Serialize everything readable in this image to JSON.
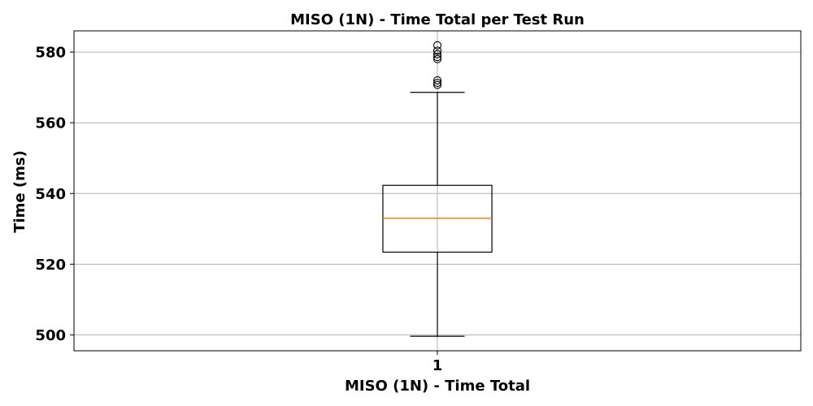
{
  "chart_data": {
    "type": "box",
    "title": "MISO (1N) - Time Total per Test Run",
    "xlabel": "MISO (1N) - Time Total",
    "ylabel": "Time (ms)",
    "categories": [
      "1"
    ],
    "ylim": [
      495.5,
      586
    ],
    "yticks": [
      500,
      520,
      540,
      560,
      580
    ],
    "grid": true,
    "boxes": [
      {
        "category": "1",
        "whisker_low": 499.6,
        "q1": 523.4,
        "median": 533.0,
        "q3": 542.3,
        "whisker_high": 568.6,
        "outliers": [
          570.7,
          571.3,
          572.0,
          578.0,
          578.6,
          579.4,
          580.4,
          581.9
        ]
      }
    ],
    "colors": {
      "box": "#000000",
      "median": "#ff7f0e",
      "grid": "#b0b0b0",
      "outlier": "#000000"
    }
  }
}
